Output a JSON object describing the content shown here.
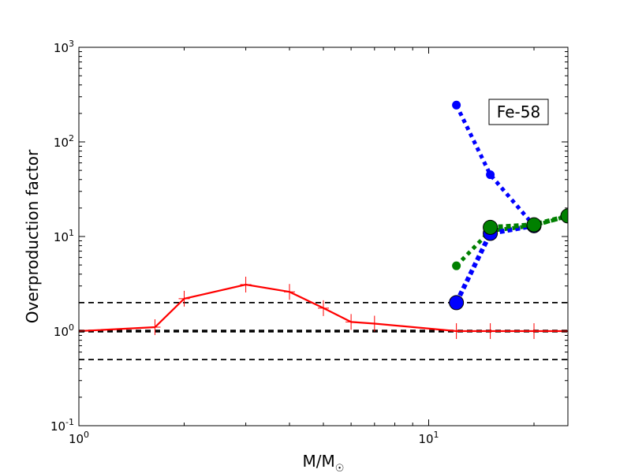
{
  "chart_data": {
    "type": "line",
    "title": "",
    "xlabel": "M/M☉",
    "xlabel_main": "M/M",
    "xlabel_sub": "☉",
    "ylabel": "Overproduction factor",
    "xscale": "log",
    "yscale": "log",
    "xlim": [
      1,
      25
    ],
    "ylim": [
      0.1,
      1000
    ],
    "grid": false,
    "legend": "none",
    "x_ticks": [
      {
        "base": "10",
        "exp": "0",
        "value": 1
      },
      {
        "base": "10",
        "exp": "1",
        "value": 10
      }
    ],
    "y_ticks": [
      {
        "base": "10",
        "exp": "-1",
        "value": 0.1
      },
      {
        "base": "10",
        "exp": "0",
        "value": 1
      },
      {
        "base": "10",
        "exp": "1",
        "value": 10
      },
      {
        "base": "10",
        "exp": "2",
        "value": 100
      },
      {
        "base": "10",
        "exp": "3",
        "value": 1000
      }
    ],
    "annotation": "Fe-58",
    "reference_lines": [
      {
        "y": 2,
        "color": "#000000",
        "style": "dashed",
        "weight": "thin"
      },
      {
        "y": 1,
        "color": "#000000",
        "style": "dashed",
        "weight": "thick"
      },
      {
        "y": 0.5,
        "color": "#000000",
        "style": "dashed",
        "weight": "thin"
      }
    ],
    "series": [
      {
        "color": "#ff0000",
        "style": "solid",
        "markers": "plus",
        "points": [
          {
            "x": 1,
            "y": 1.0
          },
          {
            "x": 1.65,
            "y": 1.1
          },
          {
            "x": 2,
            "y": 2.2
          },
          {
            "x": 3,
            "y": 3.1
          },
          {
            "x": 4,
            "y": 2.6
          },
          {
            "x": 5,
            "y": 1.75
          },
          {
            "x": 6,
            "y": 1.25
          },
          {
            "x": 7,
            "y": 1.2
          },
          {
            "x": 12,
            "y": 1.0
          },
          {
            "x": 15,
            "y": 1.0
          },
          {
            "x": 20,
            "y": 1.0
          },
          {
            "x": 25,
            "y": 1.0
          }
        ]
      },
      {
        "color": "#0000ff",
        "style": "dotted",
        "markers": "circle-small",
        "points": [
          {
            "x": 12,
            "y": 245
          },
          {
            "x": 15,
            "y": 45
          },
          {
            "x": 20,
            "y": 13
          }
        ]
      },
      {
        "color": "#008000",
        "style": "dotted",
        "markers": "circle-small",
        "points": [
          {
            "x": 12,
            "y": 4.9
          },
          {
            "x": 15,
            "y": 11.5
          },
          {
            "x": 20,
            "y": 13
          },
          {
            "x": 25,
            "y": 16.5
          }
        ]
      },
      {
        "color": "#0000ff",
        "style": "dotted",
        "markers": "circle-large",
        "points": [
          {
            "x": 12,
            "y": 2.0
          },
          {
            "x": 15,
            "y": 10.8
          },
          {
            "x": 20,
            "y": 13
          }
        ]
      },
      {
        "color": "#008000",
        "style": "dotted",
        "markers": "circle-large",
        "points": [
          {
            "x": 15,
            "y": 12.5
          },
          {
            "x": 20,
            "y": 13.3
          },
          {
            "x": 25,
            "y": 16.5
          }
        ]
      }
    ]
  }
}
